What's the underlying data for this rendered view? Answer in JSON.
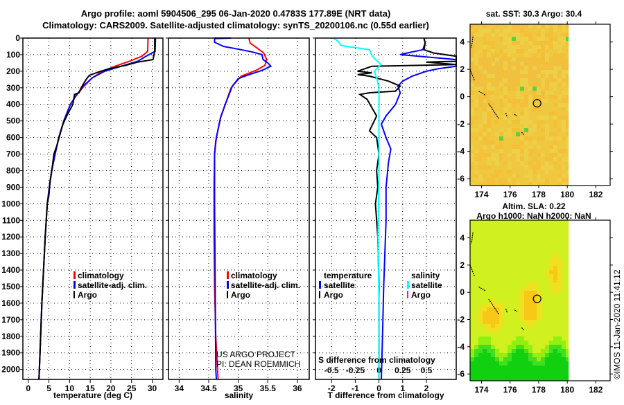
{
  "title": {
    "line1": "Argo profile: aoml 5904506_295 06-Jan-2020 0.4783S 177.89E (NRT data)",
    "line2": "Climatology: CARS2009. Satellite-adjusted climatology: synTS_20200106.nc (0.55d earlier)"
  },
  "colors": {
    "climatology": "#ff0000",
    "satellite": "#0000ff",
    "argo": "#000000",
    "sal_satellite": "#00ffff",
    "sal_argo": "#ff00ff"
  },
  "credit": {
    "project": "US ARGO PROJECT",
    "pi": "PI: DEAN ROEMMICH",
    "imos": "©IMOS 11-Jan-2020 11:41:12"
  },
  "chart_data": [
    {
      "type": "line",
      "name": "temperature",
      "xlabel": "temperature (deg C)",
      "ylabel": "",
      "xlim": [
        -1.3,
        32.6
      ],
      "ylim": [
        2060,
        0
      ],
      "xticks": [
        "0",
        "5",
        "10",
        "15",
        "20",
        "25",
        "30"
      ],
      "yticks": [
        "0",
        "100",
        "200",
        "300",
        "400",
        "500",
        "600",
        "700",
        "800",
        "900",
        "1000",
        "1100",
        "1200",
        "1300",
        "1400",
        "1500",
        "1600",
        "1700",
        "1800",
        "1900",
        "2000"
      ],
      "grid": true,
      "legend": {
        "position": "bottom-right",
        "items": [
          "climatology",
          "satellite-adj. clim.",
          "Argo"
        ]
      },
      "series": [
        {
          "name": "climatology",
          "color": "#ff0000",
          "points": [
            [
              29.0,
              0
            ],
            [
              28.9,
              80
            ],
            [
              27.5,
              110
            ],
            [
              24.5,
              140
            ],
            [
              21,
              170
            ],
            [
              18,
              200
            ],
            [
              15.5,
              240
            ],
            [
              13.5,
              290
            ],
            [
              11.5,
              350
            ],
            [
              10.2,
              400
            ],
            [
              8.6,
              500
            ],
            [
              7.4,
              600
            ],
            [
              6.5,
              700
            ],
            [
              5.7,
              800
            ],
            [
              5.1,
              900
            ],
            [
              4.6,
              1000
            ],
            [
              4.1,
              1200
            ],
            [
              3.7,
              1400
            ],
            [
              3.3,
              1600
            ],
            [
              3.0,
              1800
            ],
            [
              2.7,
              2000
            ],
            [
              2.6,
              2060
            ]
          ]
        },
        {
          "name": "satellite-adj. clim.",
          "color": "#0000ff",
          "points": [
            [
              30.8,
              0
            ],
            [
              30.7,
              80
            ],
            [
              28.5,
              110
            ],
            [
              26.5,
              140
            ],
            [
              22.5,
              170
            ],
            [
              18.5,
              200
            ],
            [
              15.5,
              240
            ],
            [
              13.3,
              290
            ],
            [
              11.5,
              350
            ],
            [
              10.2,
              400
            ],
            [
              8.6,
              500
            ],
            [
              7.4,
              600
            ],
            [
              6.5,
              700
            ],
            [
              5.7,
              800
            ],
            [
              5.1,
              900
            ],
            [
              4.6,
              1000
            ],
            [
              4.1,
              1200
            ],
            [
              3.7,
              1400
            ],
            [
              3.3,
              1600
            ],
            [
              3.0,
              1800
            ],
            [
              2.7,
              2000
            ],
            [
              2.6,
              2060
            ]
          ]
        },
        {
          "name": "Argo",
          "color": "#000000",
          "points": [
            [
              30.6,
              0
            ],
            [
              30.6,
              80
            ],
            [
              30.2,
              130
            ],
            [
              26.5,
              145
            ],
            [
              23.5,
              165
            ],
            [
              19.5,
              185
            ],
            [
              17.0,
              205
            ],
            [
              14.8,
              225
            ],
            [
              14.0,
              250
            ],
            [
              12.8,
              300
            ],
            [
              12.3,
              330
            ],
            [
              11.2,
              340
            ],
            [
              10.8,
              400
            ],
            [
              9.3,
              470
            ],
            [
              8.4,
              520
            ],
            [
              7.7,
              580
            ],
            [
              6.9,
              650
            ],
            [
              6.2,
              700
            ],
            [
              5.8,
              780
            ],
            [
              5.3,
              860
            ],
            [
              5.0,
              950
            ],
            [
              4.6,
              1000
            ],
            [
              4.1,
              1200
            ],
            [
              3.7,
              1400
            ],
            [
              3.3,
              1600
            ],
            [
              3.0,
              1800
            ],
            [
              2.7,
              2000
            ],
            [
              2.6,
              2060
            ]
          ]
        }
      ]
    },
    {
      "type": "line",
      "name": "salinity",
      "xlabel": "salinity",
      "xlim": [
        33.82,
        36.2
      ],
      "ylim": [
        2060,
        0
      ],
      "xticks": [
        "34",
        "34.5",
        "35",
        "35.5",
        "36"
      ],
      "grid": true,
      "legend": {
        "position": "bottom-right",
        "items": [
          "climatology",
          "satellite-adj. clim.",
          "Argo"
        ]
      },
      "series": [
        {
          "name": "climatology",
          "color": "#ff0000",
          "points": [
            [
              35.18,
              0
            ],
            [
              35.2,
              30
            ],
            [
              35.3,
              55
            ],
            [
              35.43,
              90
            ],
            [
              35.48,
              130
            ],
            [
              35.45,
              165
            ],
            [
              35.3,
              195
            ],
            [
              35.05,
              230
            ],
            [
              34.95,
              270
            ],
            [
              34.88,
              300
            ],
            [
              34.78,
              400
            ],
            [
              34.7,
              480
            ],
            [
              34.66,
              550
            ],
            [
              34.63,
              600
            ],
            [
              34.6,
              700
            ],
            [
              34.59,
              900
            ],
            [
              34.59,
              1200
            ],
            [
              34.6,
              1500
            ],
            [
              34.62,
              1800
            ],
            [
              34.65,
              2000
            ],
            [
              34.66,
              2060
            ]
          ]
        },
        {
          "name": "satellite-adj. clim.",
          "color": "#0000ff",
          "points": [
            [
              34.6,
              0
            ],
            [
              34.88,
              0
            ],
            [
              34.6,
              3
            ],
            [
              34.6,
              25
            ],
            [
              34.75,
              50
            ],
            [
              35.05,
              70
            ],
            [
              35.25,
              85
            ],
            [
              35.4,
              100
            ],
            [
              35.42,
              130
            ],
            [
              35.5,
              150
            ],
            [
              35.55,
              170
            ],
            [
              35.4,
              195
            ],
            [
              35.15,
              225
            ],
            [
              35.0,
              245
            ],
            [
              34.9,
              290
            ],
            [
              34.78,
              400
            ],
            [
              34.7,
              480
            ],
            [
              34.66,
              550
            ],
            [
              34.62,
              620
            ],
            [
              34.6,
              700
            ],
            [
              34.6,
              1000
            ],
            [
              34.61,
              1500
            ],
            [
              34.62,
              2000
            ],
            [
              34.63,
              2060
            ]
          ]
        },
        {
          "name": "Argo",
          "color": "#000000",
          "points": []
        }
      ]
    },
    {
      "type": "line",
      "name": "difference",
      "xlabel": "T difference from climatology",
      "x2label": "S difference from climatology",
      "xlim": [
        -2.68,
        3.26
      ],
      "x2lim": [
        -0.67,
        0.815
      ],
      "ylim": [
        2060,
        0
      ],
      "xticks": [
        "-2",
        "-1",
        "0",
        "1",
        "2"
      ],
      "x2ticks": [
        "-0.5",
        "-0.25",
        "0",
        "0.25",
        "0.5"
      ],
      "grid": true,
      "legend": {
        "temperature_title": "temperature",
        "salinity_title": "salinity",
        "items": [
          "satellite",
          "Argo"
        ]
      },
      "series": [
        {
          "name": "temperature satellite",
          "color": "#0000ff",
          "axis": "T",
          "points": [
            [
              1.9,
              0
            ],
            [
              1.95,
              30
            ],
            [
              1.85,
              70
            ],
            [
              1.2,
              90
            ],
            [
              0.9,
              100
            ],
            [
              3.3,
              130
            ],
            [
              3.3,
              160
            ],
            [
              3.3,
              170
            ],
            [
              2.5,
              185
            ],
            [
              2.0,
              200
            ],
            [
              1.4,
              230
            ],
            [
              1.0,
              260
            ],
            [
              0.8,
              290
            ],
            [
              0.9,
              330
            ],
            [
              0.7,
              400
            ],
            [
              0.3,
              470
            ],
            [
              0.1,
              520
            ],
            [
              0.3,
              600
            ],
            [
              0.5,
              670
            ],
            [
              0.4,
              750
            ],
            [
              0.3,
              900
            ],
            [
              0.3,
              1100
            ],
            [
              0.25,
              1300
            ],
            [
              0.2,
              1500
            ],
            [
              0.15,
              1800
            ],
            [
              0.1,
              2060
            ]
          ]
        },
        {
          "name": "temperature Argo",
          "color": "#000000",
          "axis": "T",
          "points": [
            [
              1.9,
              0
            ],
            [
              1.95,
              30
            ],
            [
              1.9,
              70
            ],
            [
              2.3,
              90
            ],
            [
              3.3,
              110
            ],
            [
              3.3,
              140
            ],
            [
              2.0,
              145
            ],
            [
              3.3,
              160
            ],
            [
              -0.3,
              170
            ],
            [
              -0.9,
              200
            ],
            [
              -0.3,
              210
            ],
            [
              -0.9,
              220
            ],
            [
              -0.4,
              230
            ],
            [
              0.4,
              260
            ],
            [
              0.9,
              290
            ],
            [
              0.7,
              320
            ],
            [
              -0.4,
              330
            ],
            [
              -0.8,
              340
            ],
            [
              -0.5,
              370
            ],
            [
              -0.3,
              420
            ],
            [
              -0.1,
              470
            ],
            [
              -0.4,
              560
            ],
            [
              -0.1,
              600
            ],
            [
              0.0,
              700
            ],
            [
              -0.1,
              800
            ],
            [
              -0.05,
              900
            ],
            [
              -0.15,
              1000
            ],
            [
              -0.05,
              1200
            ],
            [
              0.0,
              1500
            ],
            [
              0.0,
              1800
            ],
            [
              0.0,
              2060
            ]
          ]
        },
        {
          "name": "salinity satellite",
          "color": "#00ffff",
          "axis": "S",
          "points": [
            [
              -0.48,
              0
            ],
            [
              -0.43,
              20
            ],
            [
              -0.4,
              45
            ],
            [
              -0.1,
              70
            ],
            [
              -0.07,
              110
            ],
            [
              0.02,
              160
            ],
            [
              -0.05,
              200
            ],
            [
              -0.02,
              250
            ],
            [
              0.0,
              300
            ],
            [
              0.0,
              500
            ],
            [
              0.0,
              800
            ],
            [
              -0.01,
              1200
            ],
            [
              0.0,
              1600
            ],
            [
              0.0,
              2060
            ]
          ]
        },
        {
          "name": "salinity Argo",
          "color": "#ff00ff",
          "axis": "S",
          "points": []
        }
      ]
    },
    {
      "type": "heatmap",
      "name": "sst-map",
      "title": "sat. SST: 30.3 Argo: 30.4",
      "xlim": [
        173.2,
        183
      ],
      "ylim": [
        -6.5,
        5.3
      ],
      "xticks": [
        "174",
        "176",
        "178",
        "180",
        "182"
      ],
      "yticks": [
        "4",
        "2",
        "0",
        "-2",
        "-4",
        "-6"
      ],
      "data_extent_lon_max": 180.1,
      "marker": {
        "lon": 177.89,
        "lat": -0.48
      }
    },
    {
      "type": "heatmap",
      "name": "sla-map",
      "title": "Altim. SLA: 0.22",
      "subtitle": "Argo h1000: NaN h2000: NaN",
      "xlim": [
        173.2,
        183
      ],
      "ylim": [
        -6.5,
        5.3
      ],
      "xticks": [
        "174",
        "176",
        "178",
        "180",
        "182"
      ],
      "yticks": [
        "4",
        "2",
        "0",
        "-2",
        "-4",
        "-6"
      ],
      "data_extent_lon_max": 180.1,
      "marker": {
        "lon": 177.89,
        "lat": -0.48
      }
    }
  ]
}
